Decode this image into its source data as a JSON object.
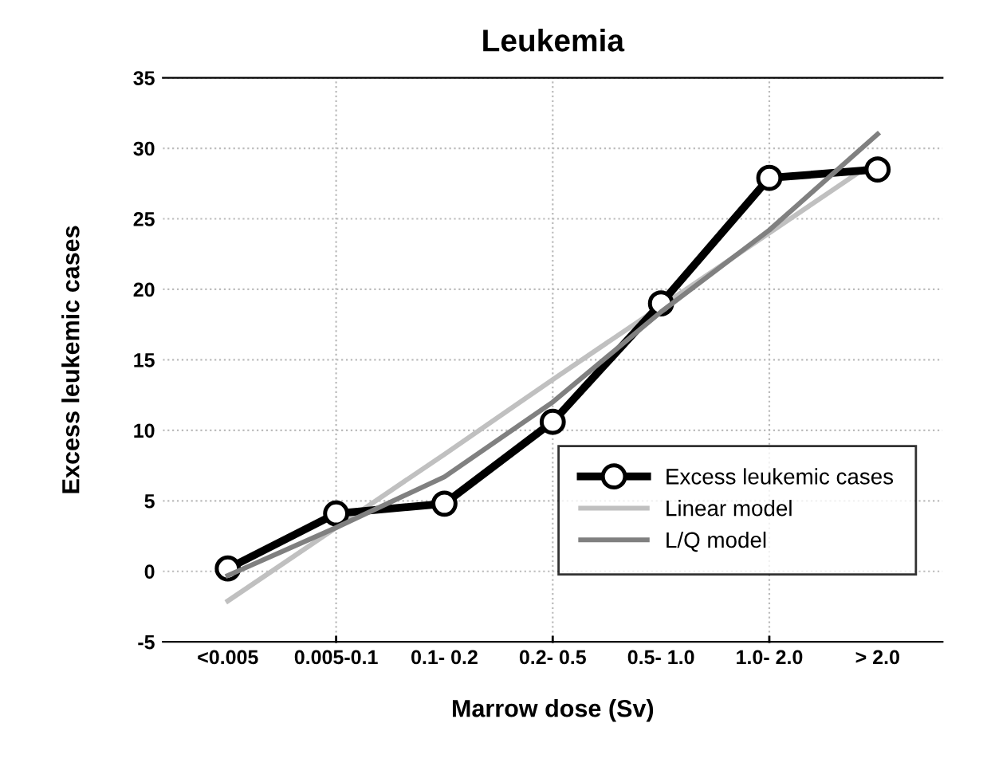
{
  "chart_data": {
    "type": "line",
    "title": "Leukemia",
    "xlabel": "Marrow dose (Sv)",
    "ylabel": "Excess leukemic cases",
    "categories": [
      "<0.005",
      "0.005-0.1",
      "0.1- 0.2",
      "0.2- 0.5",
      "0.5- 1.0",
      "1.0- 2.0",
      "> 2.0"
    ],
    "series": [
      {
        "name": "Excess leukemic cases",
        "color": "#000000",
        "marker": "circle",
        "values": [
          0.2,
          4.1,
          4.8,
          10.6,
          19.0,
          27.9,
          28.5
        ]
      },
      {
        "name": "Linear model",
        "color": "#c0c0c0",
        "marker": "none",
        "values": [
          -2.1,
          3.1,
          8.3,
          13.6,
          18.8,
          24.0,
          29.2
        ]
      },
      {
        "name": "L/Q model",
        "color": "#808080",
        "marker": "none",
        "values": [
          -0.3,
          3.1,
          6.7,
          12.0,
          18.4,
          24.2,
          31.0
        ]
      }
    ],
    "ylim": [
      -5,
      35
    ],
    "yticks": [
      -5,
      0,
      5,
      10,
      15,
      20,
      25,
      30,
      35
    ],
    "grid": true,
    "legend": "bottom right",
    "line_style": "solid"
  }
}
